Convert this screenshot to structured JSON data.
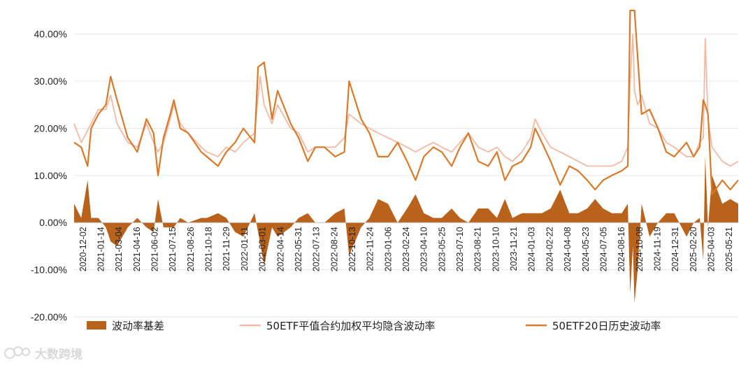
{
  "watermark": "大数跨境",
  "colors": {
    "basis": "#b8621c",
    "implied": "#f3b9a4",
    "historical": "#d87a2c",
    "grid": "#e6e6e6"
  },
  "chart_data": {
    "type": "area",
    "title": "",
    "xlabel": "",
    "ylabel": "",
    "ylim": [
      -0.2,
      0.45
    ],
    "y_ticks": [
      40.0,
      30.0,
      20.0,
      10.0,
      0.0,
      -10.0,
      -20.0
    ],
    "y_tick_labels": [
      "40.00%",
      "30.00%",
      "20.00%",
      "10.00%",
      "0.00%",
      "-10.00%",
      "-20.00%"
    ],
    "x_range": [
      "2020-12-02",
      "2025-06-30"
    ],
    "x_tick_labels": [
      "2020-12-02",
      "2021-01-14",
      "2021-03-04",
      "2021-04-16",
      "2021-06-02",
      "2021-07-15",
      "2021-08-26",
      "2021-10-18",
      "2021-11-29",
      "2022-01-11",
      "2022-03-01",
      "2022-04-14",
      "2022-05-31",
      "2022-07-13",
      "2022-08-24",
      "2022-10-13",
      "2022-11-24",
      "2023-01-06",
      "2023-02-24",
      "2023-04-10",
      "2023-05-25",
      "2023-07-10",
      "2023-08-21",
      "2023-10-10",
      "2023-11-21",
      "2024-01-03",
      "2024-02-22",
      "2024-04-08",
      "2024-05-23",
      "2024-07-05",
      "2024-08-16",
      "2024-10-08",
      "2024-11-19",
      "2024-12-31",
      "2025-02-20",
      "2025-04-03",
      "2025-05-21"
    ],
    "legend_position": "bottom",
    "grid": "horizontal",
    "series": [
      {
        "name": "50ETF平值合约加权平均隐含波动率",
        "kind": "line",
        "points": [
          [
            "2020-12-02",
            0.21
          ],
          [
            "2020-12-20",
            0.17
          ],
          [
            "2021-01-14",
            0.21
          ],
          [
            "2021-02-01",
            0.24
          ],
          [
            "2021-02-20",
            0.24
          ],
          [
            "2021-03-04",
            0.27
          ],
          [
            "2021-03-20",
            0.21
          ],
          [
            "2021-04-16",
            0.17
          ],
          [
            "2021-05-10",
            0.16
          ],
          [
            "2021-06-02",
            0.21
          ],
          [
            "2021-06-20",
            0.17
          ],
          [
            "2021-07-01",
            0.15
          ],
          [
            "2021-07-15",
            0.17
          ],
          [
            "2021-08-01",
            0.22
          ],
          [
            "2021-08-10",
            0.25
          ],
          [
            "2021-08-26",
            0.21
          ],
          [
            "2021-09-15",
            0.19
          ],
          [
            "2021-10-18",
            0.16
          ],
          [
            "2021-11-01",
            0.15
          ],
          [
            "2021-11-29",
            0.14
          ],
          [
            "2021-12-20",
            0.16
          ],
          [
            "2022-01-11",
            0.15
          ],
          [
            "2022-02-01",
            0.17
          ],
          [
            "2022-03-01",
            0.19
          ],
          [
            "2022-03-15",
            0.31
          ],
          [
            "2022-03-25",
            0.25
          ],
          [
            "2022-04-14",
            0.21
          ],
          [
            "2022-04-28",
            0.25
          ],
          [
            "2022-05-31",
            0.2
          ],
          [
            "2022-06-20",
            0.19
          ],
          [
            "2022-07-13",
            0.15
          ],
          [
            "2022-08-01",
            0.16
          ],
          [
            "2022-08-24",
            0.16
          ],
          [
            "2022-09-20",
            0.16
          ],
          [
            "2022-10-13",
            0.18
          ],
          [
            "2022-10-25",
            0.23
          ],
          [
            "2022-11-24",
            0.21
          ],
          [
            "2022-12-15",
            0.2
          ],
          [
            "2023-01-06",
            0.19
          ],
          [
            "2023-01-31",
            0.18
          ],
          [
            "2023-02-24",
            0.17
          ],
          [
            "2023-03-20",
            0.16
          ],
          [
            "2023-04-10",
            0.15
          ],
          [
            "2023-05-01",
            0.16
          ],
          [
            "2023-05-25",
            0.17
          ],
          [
            "2023-06-15",
            0.16
          ],
          [
            "2023-07-10",
            0.15
          ],
          [
            "2023-07-31",
            0.17
          ],
          [
            "2023-08-21",
            0.19
          ],
          [
            "2023-09-15",
            0.16
          ],
          [
            "2023-10-10",
            0.15
          ],
          [
            "2023-11-01",
            0.16
          ],
          [
            "2023-11-21",
            0.14
          ],
          [
            "2023-12-10",
            0.13
          ],
          [
            "2024-01-03",
            0.15
          ],
          [
            "2024-01-25",
            0.18
          ],
          [
            "2024-02-05",
            0.22
          ],
          [
            "2024-02-22",
            0.19
          ],
          [
            "2024-03-15",
            0.16
          ],
          [
            "2024-04-08",
            0.15
          ],
          [
            "2024-05-01",
            0.14
          ],
          [
            "2024-05-23",
            0.13
          ],
          [
            "2024-06-15",
            0.12
          ],
          [
            "2024-07-05",
            0.12
          ],
          [
            "2024-07-25",
            0.12
          ],
          [
            "2024-08-16",
            0.12
          ],
          [
            "2024-09-10",
            0.13
          ],
          [
            "2024-09-25",
            0.16
          ],
          [
            "2024-10-01",
            0.3
          ],
          [
            "2024-10-08",
            0.4
          ],
          [
            "2024-10-12",
            0.28
          ],
          [
            "2024-10-20",
            0.25
          ],
          [
            "2024-10-30",
            0.27
          ],
          [
            "2024-11-19",
            0.21
          ],
          [
            "2024-12-10",
            0.2
          ],
          [
            "2024-12-31",
            0.17
          ],
          [
            "2025-01-20",
            0.16
          ],
          [
            "2025-02-20",
            0.14
          ],
          [
            "2025-03-10",
            0.14
          ],
          [
            "2025-03-25",
            0.17
          ],
          [
            "2025-04-03",
            0.18
          ],
          [
            "2025-04-08",
            0.39
          ],
          [
            "2025-04-15",
            0.22
          ],
          [
            "2025-04-25",
            0.16
          ],
          [
            "2025-05-21",
            0.13
          ],
          [
            "2025-06-10",
            0.12
          ],
          [
            "2025-06-30",
            0.13
          ]
        ]
      },
      {
        "name": "50ETF20日历史波动率",
        "kind": "line",
        "points": [
          [
            "2020-12-02",
            0.17
          ],
          [
            "2020-12-20",
            0.16
          ],
          [
            "2021-01-05",
            0.12
          ],
          [
            "2021-01-14",
            0.2
          ],
          [
            "2021-02-01",
            0.23
          ],
          [
            "2021-02-20",
            0.25
          ],
          [
            "2021-03-04",
            0.31
          ],
          [
            "2021-03-20",
            0.26
          ],
          [
            "2021-04-16",
            0.18
          ],
          [
            "2021-05-10",
            0.15
          ],
          [
            "2021-06-02",
            0.22
          ],
          [
            "2021-06-20",
            0.19
          ],
          [
            "2021-07-01",
            0.1
          ],
          [
            "2021-07-15",
            0.18
          ],
          [
            "2021-08-01",
            0.23
          ],
          [
            "2021-08-10",
            0.26
          ],
          [
            "2021-08-26",
            0.2
          ],
          [
            "2021-09-15",
            0.19
          ],
          [
            "2021-10-18",
            0.15
          ],
          [
            "2021-11-01",
            0.14
          ],
          [
            "2021-11-29",
            0.12
          ],
          [
            "2021-12-20",
            0.15
          ],
          [
            "2022-01-11",
            0.17
          ],
          [
            "2022-02-01",
            0.2
          ],
          [
            "2022-03-01",
            0.17
          ],
          [
            "2022-03-10",
            0.33
          ],
          [
            "2022-03-25",
            0.34
          ],
          [
            "2022-04-14",
            0.22
          ],
          [
            "2022-04-28",
            0.28
          ],
          [
            "2022-05-31",
            0.21
          ],
          [
            "2022-06-20",
            0.18
          ],
          [
            "2022-07-13",
            0.13
          ],
          [
            "2022-08-01",
            0.16
          ],
          [
            "2022-08-24",
            0.16
          ],
          [
            "2022-09-20",
            0.14
          ],
          [
            "2022-10-13",
            0.15
          ],
          [
            "2022-10-25",
            0.3
          ],
          [
            "2022-11-24",
            0.22
          ],
          [
            "2022-12-15",
            0.19
          ],
          [
            "2023-01-06",
            0.14
          ],
          [
            "2023-01-31",
            0.14
          ],
          [
            "2023-02-24",
            0.17
          ],
          [
            "2023-03-20",
            0.13
          ],
          [
            "2023-04-10",
            0.09
          ],
          [
            "2023-05-01",
            0.14
          ],
          [
            "2023-05-25",
            0.16
          ],
          [
            "2023-06-15",
            0.15
          ],
          [
            "2023-07-10",
            0.12
          ],
          [
            "2023-07-31",
            0.16
          ],
          [
            "2023-08-21",
            0.19
          ],
          [
            "2023-09-15",
            0.13
          ],
          [
            "2023-10-10",
            0.12
          ],
          [
            "2023-11-01",
            0.15
          ],
          [
            "2023-11-21",
            0.09
          ],
          [
            "2023-12-10",
            0.12
          ],
          [
            "2024-01-03",
            0.13
          ],
          [
            "2024-01-25",
            0.16
          ],
          [
            "2024-02-05",
            0.2
          ],
          [
            "2024-02-22",
            0.17
          ],
          [
            "2024-03-15",
            0.13
          ],
          [
            "2024-04-08",
            0.08
          ],
          [
            "2024-05-01",
            0.12
          ],
          [
            "2024-05-23",
            0.11
          ],
          [
            "2024-06-15",
            0.09
          ],
          [
            "2024-07-05",
            0.07
          ],
          [
            "2024-07-25",
            0.09
          ],
          [
            "2024-08-16",
            0.1
          ],
          [
            "2024-09-10",
            0.11
          ],
          [
            "2024-09-25",
            0.12
          ],
          [
            "2024-10-01",
            0.45
          ],
          [
            "2024-10-08",
            0.45
          ],
          [
            "2024-10-12",
            0.45
          ],
          [
            "2024-10-20",
            0.35
          ],
          [
            "2024-10-30",
            0.23
          ],
          [
            "2024-11-19",
            0.24
          ],
          [
            "2024-12-10",
            0.2
          ],
          [
            "2024-12-31",
            0.15
          ],
          [
            "2025-01-20",
            0.14
          ],
          [
            "2025-02-20",
            0.17
          ],
          [
            "2025-03-10",
            0.14
          ],
          [
            "2025-03-25",
            0.16
          ],
          [
            "2025-04-03",
            0.26
          ],
          [
            "2025-04-08",
            0.25
          ],
          [
            "2025-04-15",
            0.23
          ],
          [
            "2025-04-25",
            0.06
          ],
          [
            "2025-05-21",
            0.09
          ],
          [
            "2025-06-10",
            0.07
          ],
          [
            "2025-06-30",
            0.09
          ]
        ]
      },
      {
        "name": "波动率基差",
        "kind": "area",
        "points": [
          [
            "2020-12-02",
            0.04
          ],
          [
            "2020-12-20",
            0.01
          ],
          [
            "2021-01-05",
            0.09
          ],
          [
            "2021-01-14",
            0.01
          ],
          [
            "2021-02-01",
            0.01
          ],
          [
            "2021-02-20",
            -0.01
          ],
          [
            "2021-03-04",
            -0.04
          ],
          [
            "2021-03-20",
            -0.05
          ],
          [
            "2021-04-16",
            -0.01
          ],
          [
            "2021-05-10",
            0.01
          ],
          [
            "2021-06-02",
            -0.01
          ],
          [
            "2021-06-20",
            -0.02
          ],
          [
            "2021-07-01",
            0.05
          ],
          [
            "2021-07-15",
            -0.01
          ],
          [
            "2021-08-01",
            -0.01
          ],
          [
            "2021-08-10",
            -0.01
          ],
          [
            "2021-08-26",
            0.01
          ],
          [
            "2021-09-15",
            0.0
          ],
          [
            "2021-10-18",
            0.01
          ],
          [
            "2021-11-01",
            0.01
          ],
          [
            "2021-11-29",
            0.02
          ],
          [
            "2021-12-20",
            0.01
          ],
          [
            "2022-01-11",
            -0.02
          ],
          [
            "2022-02-01",
            -0.03
          ],
          [
            "2022-03-01",
            0.02
          ],
          [
            "2022-03-10",
            -0.02
          ],
          [
            "2022-03-25",
            -0.09
          ],
          [
            "2022-04-14",
            -0.01
          ],
          [
            "2022-04-28",
            -0.03
          ],
          [
            "2022-05-31",
            -0.01
          ],
          [
            "2022-06-20",
            0.01
          ],
          [
            "2022-07-13",
            0.02
          ],
          [
            "2022-08-01",
            0.0
          ],
          [
            "2022-08-24",
            0.0
          ],
          [
            "2022-09-20",
            0.02
          ],
          [
            "2022-10-13",
            0.03
          ],
          [
            "2022-10-25",
            -0.07
          ],
          [
            "2022-11-24",
            -0.01
          ],
          [
            "2022-12-15",
            0.01
          ],
          [
            "2023-01-06",
            0.05
          ],
          [
            "2023-01-31",
            0.04
          ],
          [
            "2023-02-24",
            0.0
          ],
          [
            "2023-03-20",
            0.03
          ],
          [
            "2023-04-10",
            0.06
          ],
          [
            "2023-05-01",
            0.02
          ],
          [
            "2023-05-25",
            0.01
          ],
          [
            "2023-06-15",
            0.01
          ],
          [
            "2023-07-10",
            0.03
          ],
          [
            "2023-07-31",
            0.01
          ],
          [
            "2023-08-21",
            0.0
          ],
          [
            "2023-09-15",
            0.03
          ],
          [
            "2023-10-10",
            0.03
          ],
          [
            "2023-11-01",
            0.01
          ],
          [
            "2023-11-21",
            0.05
          ],
          [
            "2023-12-10",
            0.01
          ],
          [
            "2024-01-03",
            0.02
          ],
          [
            "2024-01-25",
            0.02
          ],
          [
            "2024-02-05",
            0.02
          ],
          [
            "2024-02-22",
            0.02
          ],
          [
            "2024-03-15",
            0.03
          ],
          [
            "2024-04-08",
            0.07
          ],
          [
            "2024-05-01",
            0.02
          ],
          [
            "2024-05-23",
            0.02
          ],
          [
            "2024-06-15",
            0.03
          ],
          [
            "2024-07-05",
            0.05
          ],
          [
            "2024-07-25",
            0.03
          ],
          [
            "2024-08-16",
            0.02
          ],
          [
            "2024-09-10",
            0.02
          ],
          [
            "2024-09-25",
            0.04
          ],
          [
            "2024-10-01",
            -0.15
          ],
          [
            "2024-10-08",
            -0.05
          ],
          [
            "2024-10-12",
            -0.17
          ],
          [
            "2024-10-20",
            -0.1
          ],
          [
            "2024-10-30",
            0.04
          ],
          [
            "2024-11-19",
            -0.03
          ],
          [
            "2024-12-10",
            0.0
          ],
          [
            "2024-12-31",
            0.02
          ],
          [
            "2025-01-20",
            0.02
          ],
          [
            "2025-02-20",
            -0.03
          ],
          [
            "2025-03-10",
            0.0
          ],
          [
            "2025-03-25",
            0.01
          ],
          [
            "2025-04-03",
            -0.08
          ],
          [
            "2025-04-08",
            0.14
          ],
          [
            "2025-04-15",
            -0.01
          ],
          [
            "2025-04-25",
            0.1
          ],
          [
            "2025-05-21",
            0.04
          ],
          [
            "2025-06-10",
            0.05
          ],
          [
            "2025-06-30",
            0.04
          ]
        ]
      }
    ]
  }
}
